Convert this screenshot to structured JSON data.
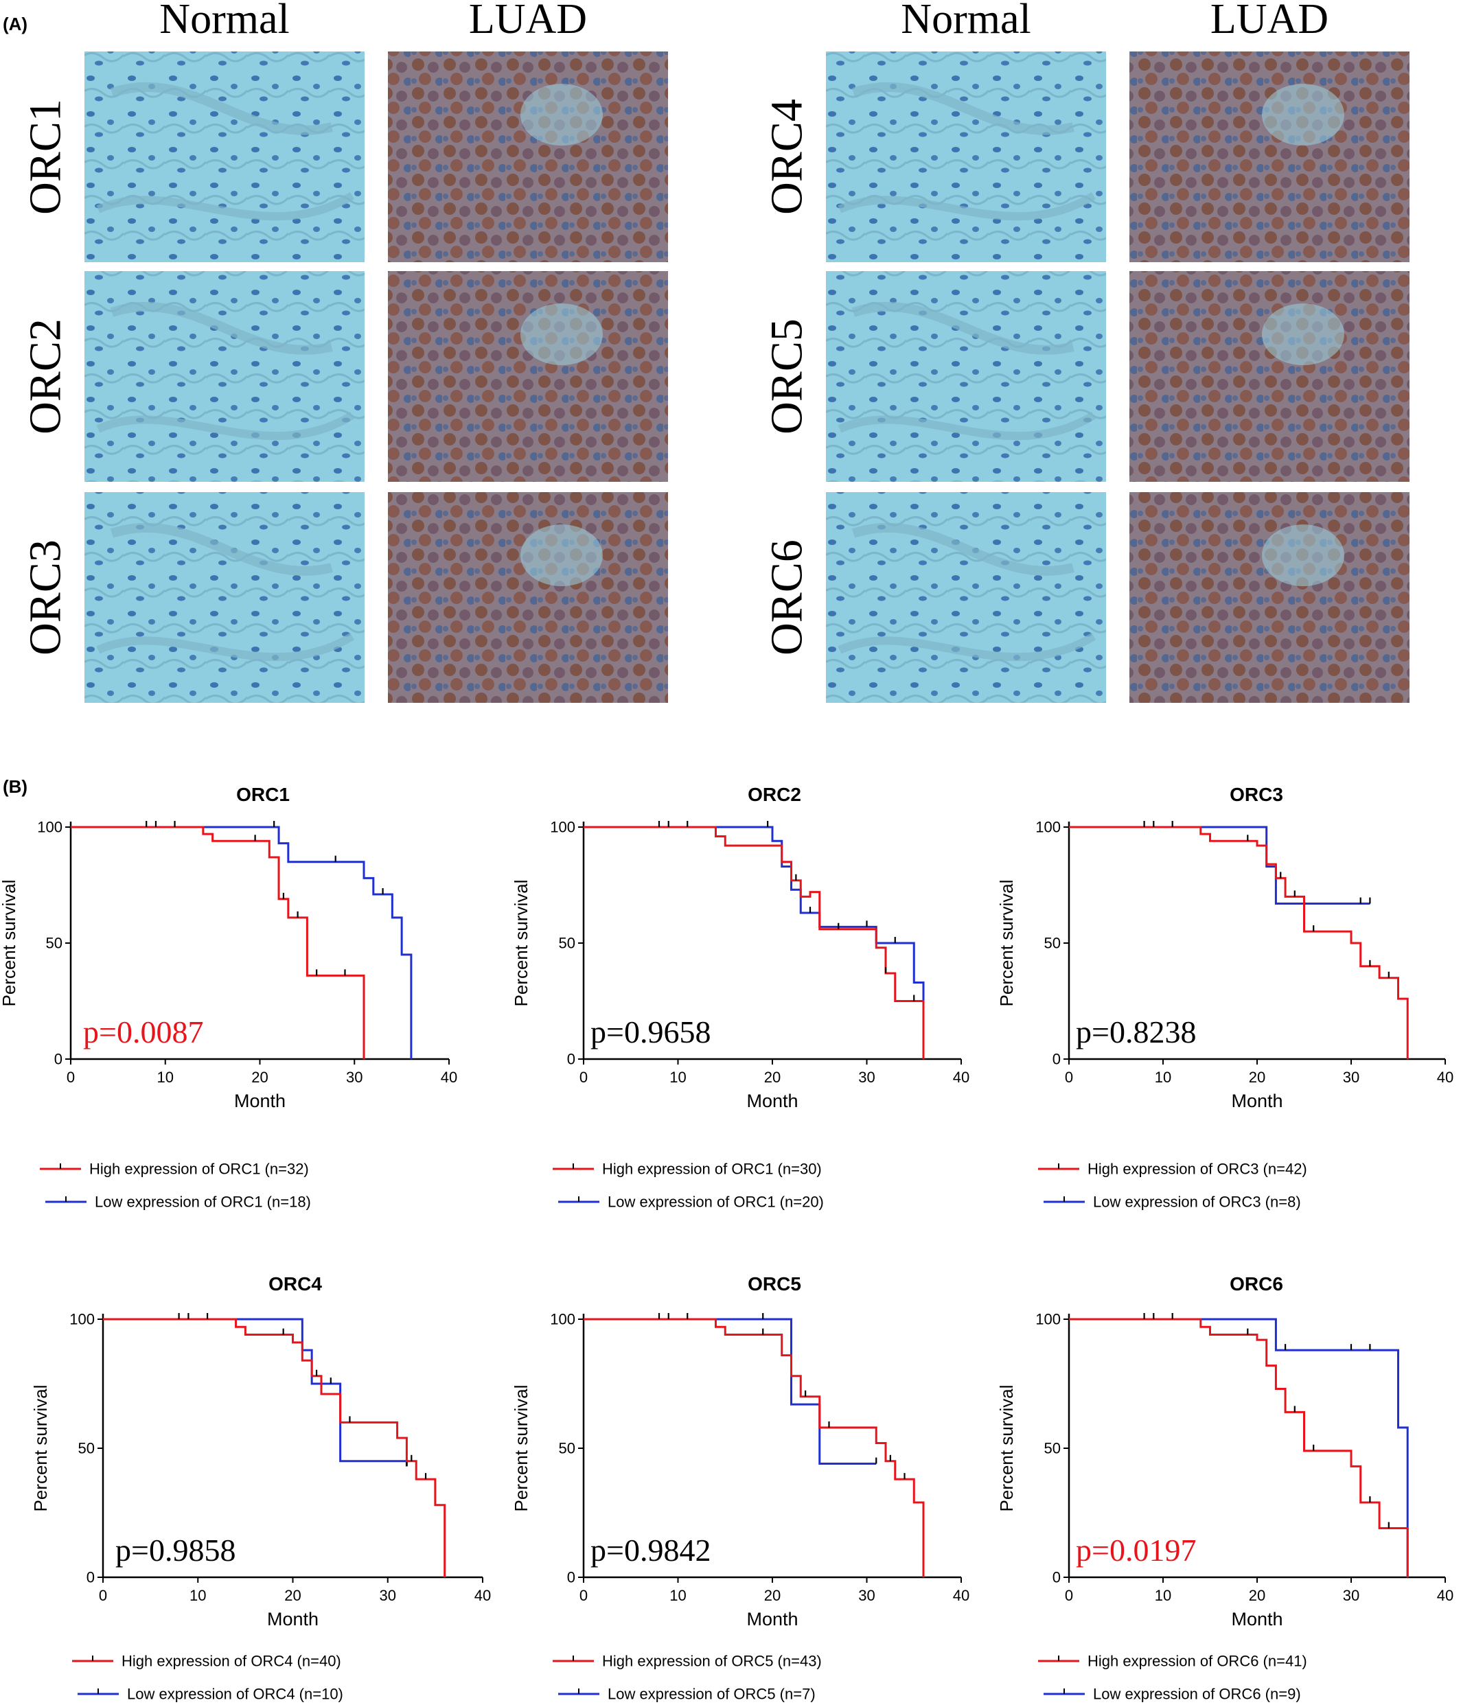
{
  "panel_a": {
    "label": "(A)",
    "columns": [
      "Normal",
      "LUAD",
      "Normal",
      "LUAD"
    ],
    "rows": [
      "ORC1",
      "ORC2",
      "ORC3",
      "ORC4",
      "ORC5",
      "ORC6"
    ],
    "colors": {
      "normal_bg": "#8fcde0",
      "luad_bg": "#8a7a86",
      "luad_stain": "#7a4b3a",
      "nuclei": "#2f63a6"
    }
  },
  "panel_b": {
    "label": "(B)"
  },
  "colors": {
    "high": "#e8141b",
    "low": "#1f2fd1",
    "significant_p": "#e8141b",
    "normal_p": "#000000"
  },
  "chart_data": [
    {
      "type": "line",
      "title": "ORC1",
      "xlabel": "Month",
      "ylabel": "Percent survival",
      "xlim": [
        0,
        40
      ],
      "ylim": [
        0,
        100
      ],
      "xticks": [
        0,
        10,
        20,
        30,
        40
      ],
      "yticks": [
        0,
        50,
        100
      ],
      "p_value": "p=0.0087",
      "p_significant": true,
      "series": [
        {
          "name": "High expression of ORC1 (n=32)",
          "color": "#e8141b",
          "steps": [
            [
              0,
              100
            ],
            [
              14,
              97
            ],
            [
              15,
              94
            ],
            [
              21,
              87
            ],
            [
              22,
              69
            ],
            [
              23,
              61
            ],
            [
              25,
              36
            ],
            [
              31,
              0
            ]
          ],
          "censored": [
            [
              8,
              100
            ],
            [
              9,
              100
            ],
            [
              11,
              100
            ],
            [
              19.5,
              94
            ],
            [
              22.5,
              69
            ],
            [
              24,
              61
            ],
            [
              26,
              36
            ],
            [
              29,
              36
            ]
          ]
        },
        {
          "name": "Low expression of ORC1 (n=18)",
          "color": "#1f2fd1",
          "steps": [
            [
              0,
              100
            ],
            [
              22,
              93
            ],
            [
              23,
              85
            ],
            [
              31,
              78
            ],
            [
              32,
              71
            ],
            [
              34,
              61
            ],
            [
              35,
              45
            ],
            [
              36,
              0
            ]
          ],
          "censored": [
            [
              21.5,
              100
            ],
            [
              28,
              85
            ],
            [
              33,
              71
            ]
          ]
        }
      ]
    },
    {
      "type": "line",
      "title": "ORC2",
      "xlabel": "Month",
      "ylabel": "Percent survival",
      "xlim": [
        0,
        40
      ],
      "ylim": [
        0,
        100
      ],
      "xticks": [
        0,
        10,
        20,
        30,
        40
      ],
      "yticks": [
        0,
        50,
        100
      ],
      "p_value": "p=0.9658",
      "p_significant": false,
      "series": [
        {
          "name": "High expression of ORC1 (n=30)",
          "color": "#e8141b",
          "steps": [
            [
              0,
              100
            ],
            [
              14,
              96
            ],
            [
              15,
              92
            ],
            [
              21,
              85
            ],
            [
              22,
              77
            ],
            [
              23,
              70
            ],
            [
              24,
              72
            ],
            [
              25,
              56
            ],
            [
              31,
              48
            ],
            [
              32,
              37
            ],
            [
              33,
              25
            ],
            [
              36,
              0
            ]
          ],
          "censored": [
            [
              8,
              100
            ],
            [
              9,
              100
            ],
            [
              11,
              100
            ],
            [
              22.5,
              77
            ],
            [
              27,
              56
            ],
            [
              32,
              37
            ],
            [
              35,
              25
            ]
          ]
        },
        {
          "name": "Low expression of ORC1 (n=20)",
          "color": "#1f2fd1",
          "steps": [
            [
              0,
              100
            ],
            [
              20,
              94
            ],
            [
              21,
              83
            ],
            [
              22,
              73
            ],
            [
              23,
              63
            ],
            [
              25,
              57
            ],
            [
              31,
              50
            ],
            [
              35,
              33
            ],
            [
              36,
              0
            ]
          ],
          "censored": [
            [
              19.5,
              100
            ],
            [
              24,
              63
            ],
            [
              30,
              57
            ],
            [
              33,
              50
            ]
          ]
        }
      ]
    },
    {
      "type": "line",
      "title": "ORC3",
      "xlabel": "Month",
      "ylabel": "Percent survival",
      "xlim": [
        0,
        40
      ],
      "ylim": [
        0,
        100
      ],
      "xticks": [
        0,
        10,
        20,
        30,
        40
      ],
      "yticks": [
        0,
        50,
        100
      ],
      "p_value": "p=0.8238",
      "p_significant": false,
      "series": [
        {
          "name": "High expression of ORC3 (n=42)",
          "color": "#e8141b",
          "steps": [
            [
              0,
              100
            ],
            [
              14,
              97
            ],
            [
              15,
              94
            ],
            [
              20,
              92
            ],
            [
              21,
              84
            ],
            [
              22,
              78
            ],
            [
              23,
              70
            ],
            [
              25,
              55
            ],
            [
              30,
              50
            ],
            [
              31,
              40
            ],
            [
              33,
              35
            ],
            [
              35,
              26
            ],
            [
              36,
              0
            ]
          ],
          "censored": [
            [
              8,
              100
            ],
            [
              9,
              100
            ],
            [
              11,
              100
            ],
            [
              19,
              94
            ],
            [
              22.5,
              78
            ],
            [
              24,
              70
            ],
            [
              26,
              55
            ],
            [
              32,
              40
            ],
            [
              34,
              35
            ]
          ]
        },
        {
          "name": "Low expression of ORC3 (n=8)",
          "color": "#1f2fd1",
          "steps": [
            [
              0,
              100
            ],
            [
              21,
              83
            ],
            [
              22,
              67
            ],
            [
              32,
              67
            ]
          ],
          "censored": [
            [
              31,
              67
            ],
            [
              32,
              67
            ]
          ]
        }
      ]
    },
    {
      "type": "line",
      "title": "ORC4",
      "xlabel": "Month",
      "ylabel": "Percent survival",
      "xlim": [
        0,
        40
      ],
      "ylim": [
        0,
        100
      ],
      "xticks": [
        0,
        10,
        20,
        30,
        40
      ],
      "yticks": [
        0,
        50,
        100
      ],
      "p_value": "p=0.9858",
      "p_significant": false,
      "series": [
        {
          "name": "High expression of ORC4 (n=40)",
          "color": "#e8141b",
          "steps": [
            [
              0,
              100
            ],
            [
              14,
              97
            ],
            [
              15,
              94
            ],
            [
              20,
              91
            ],
            [
              21,
              84
            ],
            [
              22,
              78
            ],
            [
              23,
              71
            ],
            [
              25,
              60
            ],
            [
              31,
              54
            ],
            [
              32,
              45
            ],
            [
              33,
              38
            ],
            [
              35,
              28
            ],
            [
              36,
              0
            ]
          ],
          "censored": [
            [
              8,
              100
            ],
            [
              9,
              100
            ],
            [
              11,
              100
            ],
            [
              19,
              94
            ],
            [
              22.5,
              78
            ],
            [
              26,
              60
            ],
            [
              32.5,
              45
            ],
            [
              34,
              38
            ]
          ]
        },
        {
          "name": "Low expression of ORC4 (n=10)",
          "color": "#1f2fd1",
          "steps": [
            [
              0,
              100
            ],
            [
              21,
              88
            ],
            [
              22,
              75
            ],
            [
              25,
              45
            ],
            [
              31,
              45
            ],
            [
              32,
              43
            ]
          ],
          "censored": [
            [
              24,
              75
            ],
            [
              32,
              43
            ]
          ]
        }
      ]
    },
    {
      "type": "line",
      "title": "ORC5",
      "xlabel": "Month",
      "ylabel": "Percent survival",
      "xlim": [
        0,
        40
      ],
      "ylim": [
        0,
        100
      ],
      "xticks": [
        0,
        10,
        20,
        30,
        40
      ],
      "yticks": [
        0,
        50,
        100
      ],
      "p_value": "p=0.9842",
      "p_significant": false,
      "series": [
        {
          "name": "High expression of ORC5 (n=43)",
          "color": "#e8141b",
          "steps": [
            [
              0,
              100
            ],
            [
              14,
              97
            ],
            [
              15,
              94
            ],
            [
              21,
              86
            ],
            [
              22,
              78
            ],
            [
              23,
              70
            ],
            [
              25,
              58
            ],
            [
              31,
              52
            ],
            [
              32,
              45
            ],
            [
              33,
              38
            ],
            [
              35,
              29
            ],
            [
              36,
              0
            ]
          ],
          "censored": [
            [
              8,
              100
            ],
            [
              9,
              100
            ],
            [
              11,
              100
            ],
            [
              19,
              94
            ],
            [
              23.5,
              70
            ],
            [
              26,
              58
            ],
            [
              32.5,
              45
            ],
            [
              34,
              38
            ]
          ]
        },
        {
          "name": "Low expression of ORC5 (n=7)",
          "color": "#1f2fd1",
          "steps": [
            [
              0,
              100
            ],
            [
              22,
              67
            ],
            [
              25,
              44
            ],
            [
              31,
              44
            ]
          ],
          "censored": [
            [
              19,
              100
            ],
            [
              31,
              44
            ]
          ]
        }
      ]
    },
    {
      "type": "line",
      "title": "ORC6",
      "xlabel": "Month",
      "ylabel": "Percent survival",
      "xlim": [
        0,
        40
      ],
      "ylim": [
        0,
        100
      ],
      "xticks": [
        0,
        10,
        20,
        30,
        40
      ],
      "yticks": [
        0,
        50,
        100
      ],
      "p_value": "p=0.0197",
      "p_significant": true,
      "series": [
        {
          "name": "High expression of ORC6 (n=41)",
          "color": "#e8141b",
          "steps": [
            [
              0,
              100
            ],
            [
              14,
              97
            ],
            [
              15,
              94
            ],
            [
              20,
              92
            ],
            [
              21,
              82
            ],
            [
              22,
              73
            ],
            [
              23,
              64
            ],
            [
              25,
              49
            ],
            [
              30,
              43
            ],
            [
              31,
              29
            ],
            [
              33,
              19
            ],
            [
              36,
              0
            ]
          ],
          "censored": [
            [
              8,
              100
            ],
            [
              9,
              100
            ],
            [
              11,
              100
            ],
            [
              19,
              94
            ],
            [
              24,
              64
            ],
            [
              26,
              49
            ],
            [
              32,
              29
            ],
            [
              34,
              19
            ]
          ]
        },
        {
          "name": "Low expression of ORC6 (n=9)",
          "color": "#1f2fd1",
          "steps": [
            [
              0,
              100
            ],
            [
              22,
              88
            ],
            [
              35,
              58
            ],
            [
              36,
              0
            ]
          ],
          "censored": [
            [
              23,
              88
            ],
            [
              30,
              88
            ],
            [
              32,
              88
            ]
          ]
        }
      ]
    }
  ]
}
